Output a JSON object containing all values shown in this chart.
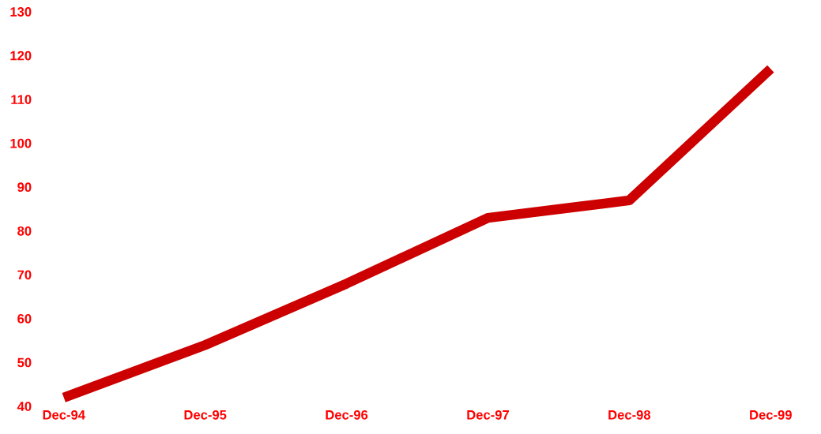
{
  "chart_data": {
    "type": "line",
    "categories": [
      "Dec-94",
      "Dec-95",
      "Dec-96",
      "Dec-97",
      "Dec-98",
      "Dec-99"
    ],
    "values": [
      42,
      54,
      68,
      83,
      87,
      117
    ],
    "color": "#cc0000",
    "ylim": [
      40,
      130
    ],
    "yticks": [
      40,
      50,
      60,
      70,
      80,
      90,
      100,
      110,
      120,
      130
    ],
    "marker": "none",
    "line_style": "solid"
  }
}
